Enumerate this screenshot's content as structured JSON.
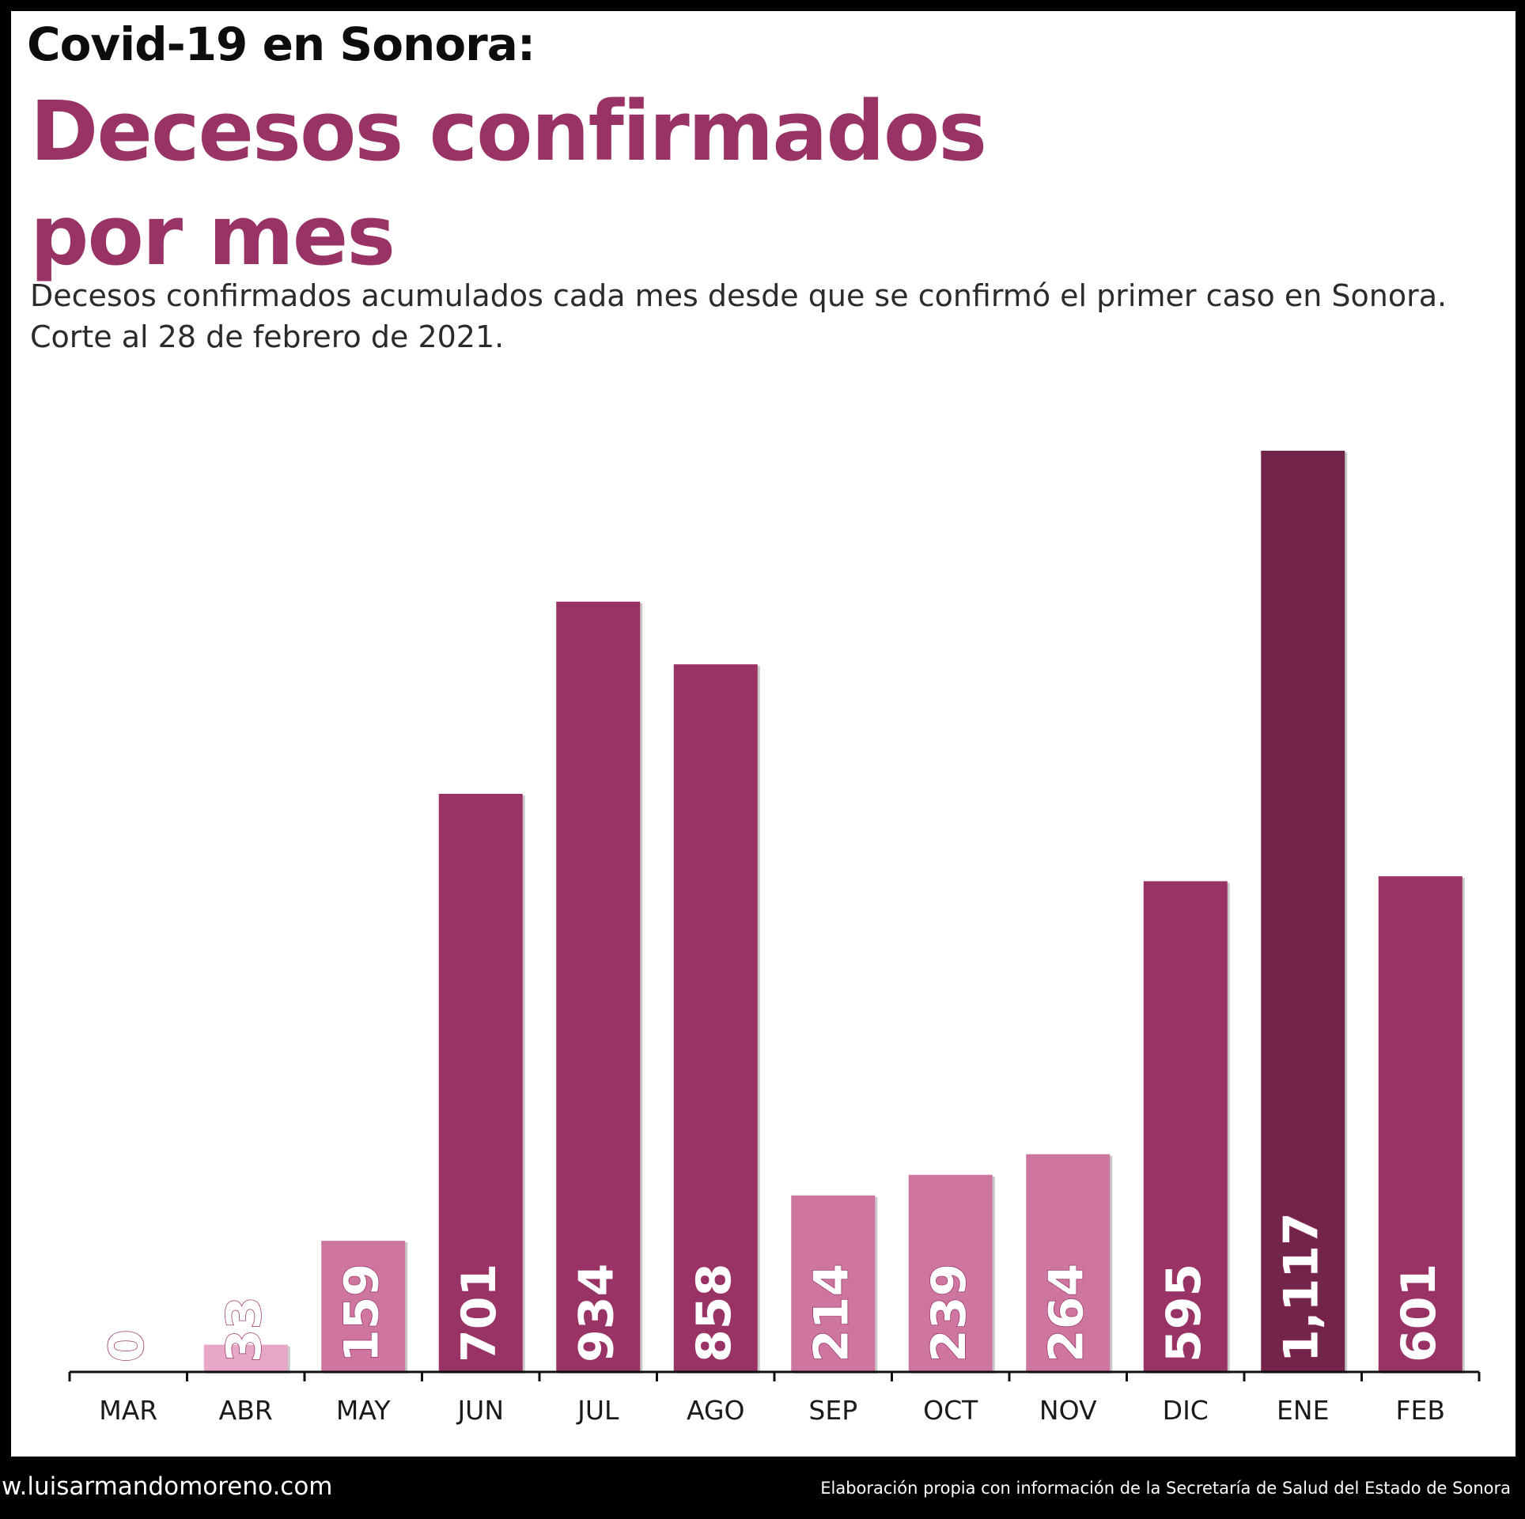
{
  "header": {
    "super_title": "Covid-19 en Sonora:",
    "title_line1": "Decesos confirmados",
    "title_line2": "por mes",
    "subtitle_line1": "Decesos confirmados acumulados cada mes desde que se confirmó el primer caso en Sonora.",
    "subtitle_line2": "Corte al 28 de febrero de 2021."
  },
  "footer": {
    "left": "w.luisarmandomoreno.com",
    "right": "Elaboración propia con información de la Secretaría de Salud del Estado de Sonora"
  },
  "colors": {
    "title": "#993366",
    "low": "#CE75A0",
    "lightest": "#E6A8C6",
    "high": "#993366",
    "max": "#722449"
  },
  "chart_data": {
    "type": "bar",
    "categories": [
      "MAR",
      "ABR",
      "MAY",
      "JUN",
      "JUL",
      "AGO",
      "SEP",
      "OCT",
      "NOV",
      "DIC",
      "ENE",
      "FEB"
    ],
    "values": [
      0,
      33,
      159,
      701,
      934,
      858,
      214,
      239,
      264,
      595,
      1117,
      601
    ],
    "data_labels": [
      "0",
      "33",
      "159",
      "701",
      "934",
      "858",
      "214",
      "239",
      "264",
      "595",
      "1,117",
      "601"
    ],
    "bar_colors": [
      "#CE75A0",
      "#E6A8C6",
      "#CE75A0",
      "#993366",
      "#993366",
      "#993366",
      "#CE75A0",
      "#CE75A0",
      "#CE75A0",
      "#993366",
      "#722449",
      "#993366"
    ],
    "title": "Decesos confirmados por mes",
    "xlabel": "",
    "ylabel": "",
    "ylim": [
      0,
      1117
    ],
    "grid": false,
    "legend": false
  }
}
